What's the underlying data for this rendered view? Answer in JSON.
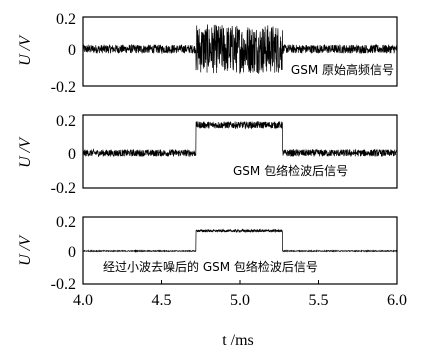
{
  "chart_data": [
    {
      "type": "line",
      "ylabel": "U /V",
      "yticks": [
        "0.2",
        "0",
        "-0.2"
      ],
      "ylim": [
        -0.2,
        0.2
      ],
      "xlim": [
        4.0,
        6.0
      ],
      "annotation": "GSM 原始高频信号",
      "series": [
        {
          "signal": "burst-noise",
          "baseline": 0.0,
          "baseline_amplitude": 0.03,
          "burst_start": 4.72,
          "burst_end": 5.27,
          "burst_amplitude": 0.17
        }
      ]
    },
    {
      "type": "line",
      "ylabel": "U /V",
      "yticks": [
        "0.2",
        "0",
        "-0.2"
      ],
      "ylim": [
        -0.2,
        0.2
      ],
      "xlim": [
        4.0,
        6.0
      ],
      "annotation": "GSM 包络检波后信号",
      "series": [
        {
          "signal": "envelope-noisy",
          "baseline": 0.0,
          "baseline_amplitude": 0.02,
          "burst_start": 4.72,
          "burst_end": 5.27,
          "burst_level": 0.16,
          "burst_amplitude": 0.02
        }
      ]
    },
    {
      "type": "line",
      "ylabel": "U /V",
      "yticks": [
        "0.2",
        "0",
        "-0.2"
      ],
      "ylim": [
        -0.2,
        0.2
      ],
      "xlim": [
        4.0,
        6.0
      ],
      "xticks": [
        "4.0",
        "4.5",
        "5.0",
        "5.5",
        "6.0"
      ],
      "xlabel": "t /ms",
      "annotation": "经过小波去噪后的 GSM 包络检波后信号",
      "series": [
        {
          "signal": "envelope-denoised",
          "baseline": 0.0,
          "baseline_amplitude": 0.003,
          "burst_start": 4.72,
          "burst_end": 5.27,
          "burst_level": 0.13,
          "burst_amplitude": 0.008
        }
      ]
    }
  ]
}
